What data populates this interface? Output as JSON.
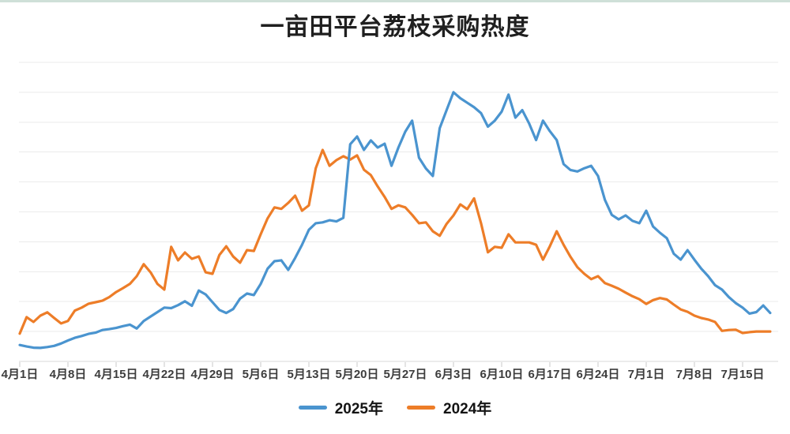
{
  "page": {
    "top_accent_color": "#cfe0d8",
    "background_color": "#ffffff"
  },
  "chart_data": {
    "type": "line",
    "title": "一亩田平台荔枝采购热度",
    "grid": "horizontal",
    "legend_position": "bottom-center",
    "x_axis": {
      "start_date": "4月1日",
      "end_date": "7月19日",
      "days_total": 110,
      "tick_day_indices": [
        0,
        7,
        14,
        21,
        28,
        35,
        42,
        49,
        56,
        63,
        70,
        77,
        84,
        91,
        98,
        105
      ],
      "tick_labels": [
        "4月1日",
        "4月8日",
        "4月15日",
        "4月22日",
        "4月29日",
        "5月6日",
        "5月13日",
        "5月20日",
        "5月27日",
        "6月3日",
        "6月10日",
        "6月17日",
        "6月24日",
        "7月1日",
        "7月8日",
        "7月15日"
      ]
    },
    "y_axis": {
      "min": 0,
      "max": 100,
      "gridline_step": 10,
      "tick_labels_visible": false
    },
    "series": [
      {
        "name": "2025年",
        "color": "#4a94cf",
        "values": [
          5.5,
          5.0,
          4.6,
          4.5,
          4.8,
          5.2,
          6.0,
          7.0,
          7.9,
          8.5,
          9.2,
          9.6,
          10.5,
          10.8,
          11.2,
          11.8,
          12.3,
          11.0,
          13.5,
          15.0,
          16.5,
          18.0,
          17.8,
          18.8,
          20.1,
          18.6,
          23.7,
          22.4,
          19.8,
          17.2,
          16.2,
          17.5,
          21.0,
          22.7,
          22.2,
          25.9,
          31.0,
          33.5,
          33.8,
          30.6,
          34.6,
          39.0,
          44.0,
          46.2,
          46.5,
          47.2,
          46.8,
          48.0,
          72.6,
          75.2,
          70.7,
          73.9,
          71.5,
          72.8,
          65.4,
          71.5,
          76.8,
          80.5,
          68.1,
          64.5,
          62.0,
          78.0,
          84.0,
          90.0,
          88.0,
          86.5,
          85.0,
          83.0,
          78.5,
          80.5,
          83.5,
          89.2,
          81.5,
          84.0,
          79.5,
          74.0,
          80.5,
          77.0,
          74.0,
          66.0,
          64.0,
          63.5,
          64.6,
          65.4,
          62.0,
          54.0,
          49.0,
          47.5,
          48.8,
          47.0,
          46.2,
          50.4,
          45.1,
          43.0,
          41.2,
          36.0,
          34.0,
          37.2,
          34.0,
          31.0,
          28.5,
          25.5,
          24.0,
          21.5,
          19.5,
          18.0,
          16.0,
          16.5,
          18.7,
          16.2
        ]
      },
      {
        "name": "2024年",
        "color": "#ed7d28",
        "values": [
          9.3,
          14.8,
          13.2,
          15.3,
          16.4,
          14.5,
          12.7,
          13.5,
          17.0,
          18.0,
          19.3,
          19.8,
          20.3,
          21.5,
          23.2,
          24.5,
          25.9,
          28.5,
          32.5,
          29.8,
          25.9,
          24.0,
          38.3,
          33.8,
          36.4,
          34.3,
          35.1,
          29.8,
          29.3,
          35.6,
          38.5,
          35.1,
          33.0,
          37.2,
          36.9,
          42.5,
          47.8,
          51.5,
          51.0,
          53.0,
          55.4,
          50.4,
          52.2,
          64.6,
          70.7,
          65.4,
          67.3,
          68.6,
          67.5,
          68.9,
          64.1,
          62.3,
          58.5,
          55.0,
          51.0,
          52.2,
          51.5,
          49.0,
          46.2,
          46.5,
          43.5,
          42.0,
          46.0,
          48.8,
          52.5,
          50.9,
          54.5,
          46.2,
          36.5,
          38.3,
          38.0,
          42.5,
          39.8,
          39.8,
          39.8,
          39.0,
          34.0,
          38.5,
          43.5,
          39.0,
          35.0,
          31.5,
          29.3,
          27.5,
          28.5,
          26.2,
          25.3,
          24.3,
          23.0,
          21.8,
          20.8,
          19.2,
          20.5,
          21.2,
          20.7,
          19.0,
          17.4,
          16.6,
          15.3,
          14.5,
          14.0,
          13.2,
          10.2,
          10.5,
          10.6,
          9.5,
          9.8,
          10.0,
          10.0,
          10.0
        ]
      }
    ]
  }
}
